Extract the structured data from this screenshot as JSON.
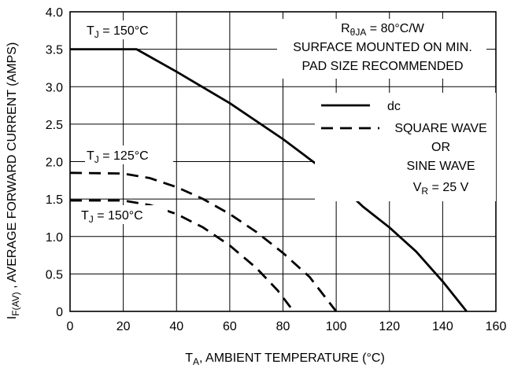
{
  "chart_data": {
    "type": "line",
    "xlabel": {
      "main": "T",
      "sub": "A",
      "rest": ", AMBIENT TEMPERATURE (°C)"
    },
    "ylabel": {
      "main": "I",
      "sub": "F(AV)",
      "rest": " , AVERAGE FORWARD CURRENT (AMPS)"
    },
    "xlim": [
      0,
      160
    ],
    "ylim": [
      0,
      4.0
    ],
    "x_ticks": [
      "0",
      "20",
      "40",
      "60",
      "80",
      "100",
      "120",
      "140",
      "160"
    ],
    "y_ticks": [
      "0",
      "0.5",
      "1.0",
      "1.5",
      "2.0",
      "2.5",
      "3.0",
      "3.5",
      "4.0"
    ],
    "grid": true,
    "series": [
      {
        "name": "dc",
        "style": "solid",
        "points": [
          [
            0,
            3.5
          ],
          [
            25,
            3.5
          ],
          [
            40,
            3.2
          ],
          [
            60,
            2.78
          ],
          [
            80,
            2.3
          ],
          [
            95,
            1.9
          ],
          [
            110,
            1.4
          ],
          [
            120,
            1.12
          ],
          [
            130,
            0.8
          ],
          [
            140,
            0.4
          ],
          [
            149,
            0
          ]
        ]
      },
      {
        "name": "SQUARE WAVE OR SINE WAVE",
        "style": "dashed",
        "points": [
          [
            0,
            1.85
          ],
          [
            20,
            1.84
          ],
          [
            30,
            1.78
          ],
          [
            40,
            1.66
          ],
          [
            50,
            1.5
          ],
          [
            60,
            1.3
          ],
          [
            70,
            1.06
          ],
          [
            80,
            0.78
          ],
          [
            90,
            0.46
          ],
          [
            100,
            0
          ]
        ]
      },
      {
        "name": "SQUARE WAVE OR SINE WAVE",
        "style": "dashed",
        "points": [
          [
            0,
            1.48
          ],
          [
            20,
            1.48
          ],
          [
            30,
            1.42
          ],
          [
            40,
            1.3
          ],
          [
            50,
            1.12
          ],
          [
            60,
            0.88
          ],
          [
            70,
            0.58
          ],
          [
            78,
            0.28
          ],
          [
            84,
            0
          ]
        ]
      }
    ],
    "legend": {
      "dc_label": "dc",
      "wave_line1": "SQUARE WAVE",
      "wave_line2": "OR",
      "wave_line3": "SINE WAVE"
    },
    "annotations": {
      "tj_top": {
        "main": "T",
        "sub": "J",
        "rest": " = 150°C"
      },
      "tj_125": {
        "main": "T",
        "sub": "J",
        "rest": " = 125°C"
      },
      "tj_150_low": {
        "main": "T",
        "sub": "J",
        "rest": " = 150°C"
      },
      "rtheta": {
        "main": "R",
        "sub": "θJA",
        "rest": " = 80°C/W"
      },
      "surface_line1": "SURFACE MOUNTED ON MIN.",
      "surface_line2": "PAD SIZE RECOMMENDED",
      "vr": {
        "main": "V",
        "sub": "R",
        "rest": " = 25 V"
      }
    }
  }
}
